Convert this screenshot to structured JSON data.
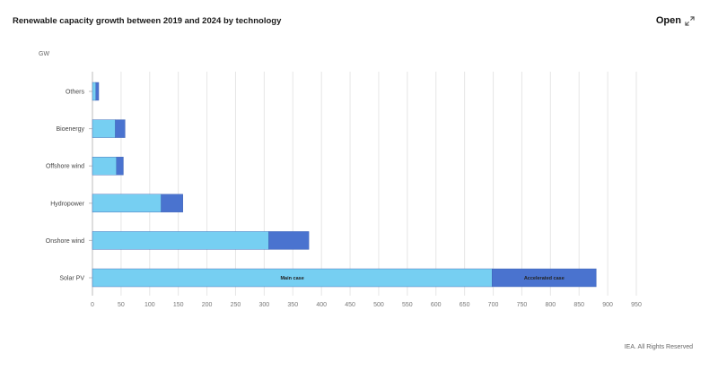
{
  "header": {
    "title": "Renewable capacity growth between 2019 and 2024 by technology",
    "open_label": "Open",
    "open_icon": "expand-arrows-icon"
  },
  "footer": {
    "credit": "IEA. All Rights Reserved"
  },
  "colors": {
    "main_case": "#76cff2",
    "accelerated_case": "#4a73cf",
    "grid": "#e6e6e6",
    "axis": "#bdbdbd"
  },
  "chart_data": {
    "type": "bar",
    "orientation": "horizontal",
    "stacked": true,
    "unit_label": "GW",
    "categories": [
      "Others",
      "Bioenergy",
      "Offshore wind",
      "Hydropower",
      "Onshore wind",
      "Solar PV"
    ],
    "series": [
      {
        "name": "Main case",
        "values": [
          6,
          40,
          42,
          120,
          308,
          698
        ]
      },
      {
        "name": "Accelerated case",
        "values": [
          5,
          17,
          12,
          38,
          70,
          182
        ]
      }
    ],
    "xlim": [
      0,
      950
    ],
    "xticks": [
      0,
      50,
      100,
      150,
      200,
      250,
      300,
      350,
      400,
      450,
      500,
      550,
      600,
      650,
      700,
      750,
      800,
      850,
      900,
      950
    ],
    "grid": true,
    "legend": "inline labels on Solar PV bar"
  }
}
